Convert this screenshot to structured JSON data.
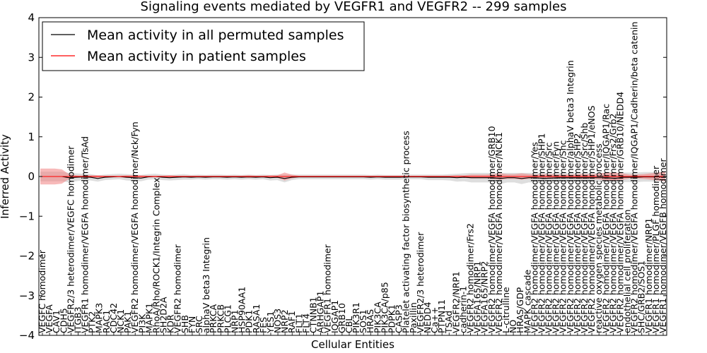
{
  "chart_data": {
    "type": "line",
    "title": "Signaling events mediated by VEGFR1 and VEGFR2 -- 299 samples",
    "xlabel": "Cellular Entities",
    "ylabel": "Inferred Activity",
    "ylim": [
      -4,
      4
    ],
    "yticks": [
      -4,
      -3,
      -2,
      -1,
      0,
      1,
      2,
      3,
      4
    ],
    "ytick_labels": [
      "−4",
      "−3",
      "−2",
      "−1",
      "0",
      "1",
      "2",
      "3",
      "4"
    ],
    "grid": false,
    "legend_position": "top-left",
    "colors": {
      "permuted": "#000000",
      "patient": "#ff0000",
      "patient_band": "#f08080",
      "permuted_band": "#c8c8c8"
    },
    "series": [
      {
        "name": "Mean activity in all permuted samples",
        "color": "#000000",
        "values": [
          0,
          0,
          0,
          0,
          -0.03,
          -0.02,
          -0.01,
          -0.02,
          -0.05,
          -0.02,
          -0.01,
          0,
          -0.02,
          -0.03,
          -0.04,
          -0.01,
          0,
          -0.02,
          -0.03,
          -0.02,
          -0.01,
          -0.02,
          -0.01,
          -0.02,
          -0.01,
          -0.01,
          -0.02,
          -0.01,
          -0.02,
          -0.01,
          -0.02,
          -0.01,
          -0.03,
          -0.02,
          -0.05,
          -0.02,
          -0.01,
          -0.01,
          -0.01,
          -0.01,
          -0.01,
          -0.01,
          -0.01,
          -0.01,
          -0.01,
          -0.01,
          -0.02,
          -0.01,
          -0.02,
          -0.02,
          -0.02,
          -0.01,
          -0.01,
          -0.01,
          -0.02,
          -0.02,
          -0.02,
          -0.02,
          -0.03,
          -0.02,
          -0.03,
          -0.03,
          -0.03,
          -0.03,
          -0.05,
          -0.03,
          -0.03,
          -0.05,
          -0.03,
          -0.03,
          -0.05,
          -0.04,
          -0.03,
          -0.03,
          -0.03,
          -0.03,
          -0.03,
          -0.03,
          -0.03,
          -0.03,
          -0.05,
          -0.02,
          -0.02,
          -0.02,
          -0.01,
          -0.01,
          -0.01,
          0
        ]
      },
      {
        "name": "Mean activity in patient samples",
        "color": "#ff0000",
        "values": [
          0,
          0,
          0,
          0,
          0,
          0,
          0,
          0,
          0,
          0,
          0,
          0,
          0,
          0,
          0,
          0,
          0,
          0,
          0,
          0,
          0,
          0,
          0,
          0,
          0,
          0,
          0,
          0,
          0,
          0,
          0,
          0,
          0,
          0,
          0,
          0,
          0,
          0,
          0,
          0,
          0,
          0,
          0,
          0,
          0,
          0,
          0,
          0,
          0,
          0,
          0,
          0,
          0,
          0,
          0,
          0,
          0,
          0,
          0,
          0,
          0,
          0,
          0,
          0,
          0,
          0,
          0,
          0,
          0,
          0,
          0,
          0,
          0,
          0,
          0,
          0,
          0,
          0,
          0,
          0,
          0,
          0,
          0,
          0,
          0,
          0,
          0,
          0
        ]
      }
    ],
    "band_patient_half": [
      0.2,
      0.2,
      0.2,
      0.18,
      0.06,
      0.03,
      0.02,
      0.03,
      0.03,
      0.02,
      0.02,
      0.02,
      0.03,
      0.03,
      0.03,
      0.02,
      0.02,
      0.02,
      0.03,
      0.02,
      0.02,
      0.02,
      0.02,
      0.02,
      0.02,
      0.02,
      0.02,
      0.02,
      0.02,
      0.03,
      0.02,
      0.02,
      0.03,
      0.03,
      0.1,
      0.05,
      0.02,
      0.02,
      0.02,
      0.02,
      0.02,
      0.02,
      0.02,
      0.02,
      0.02,
      0.02,
      0.02,
      0.02,
      0.02,
      0.02,
      0.02,
      0.02,
      0.02,
      0.02,
      0.02,
      0.02,
      0.02,
      0.02,
      0.03,
      0.03,
      0.05,
      0.05,
      0.05,
      0.06,
      0.08,
      0.06,
      0.06,
      0.08,
      0.06,
      0.05,
      0.06,
      0.06,
      0.05,
      0.05,
      0.05,
      0.06,
      0.06,
      0.06,
      0.08,
      0.1,
      0.1,
      0.08,
      0.05,
      0.05,
      0.06,
      0.08,
      0.1,
      0.12
    ],
    "band_permuted_half": [
      0.12,
      0.12,
      0.12,
      0.12,
      0.12,
      0.1,
      0.08,
      0.08,
      0.08,
      0.07,
      0.07,
      0.07,
      0.08,
      0.08,
      0.08,
      0.07,
      0.07,
      0.07,
      0.07,
      0.07,
      0.07,
      0.06,
      0.06,
      0.06,
      0.06,
      0.06,
      0.06,
      0.06,
      0.06,
      0.06,
      0.06,
      0.06,
      0.07,
      0.07,
      0.1,
      0.07,
      0.06,
      0.06,
      0.06,
      0.06,
      0.06,
      0.06,
      0.06,
      0.06,
      0.06,
      0.06,
      0.06,
      0.06,
      0.06,
      0.06,
      0.06,
      0.06,
      0.06,
      0.06,
      0.07,
      0.07,
      0.07,
      0.08,
      0.1,
      0.1,
      0.12,
      0.12,
      0.12,
      0.12,
      0.14,
      0.12,
      0.12,
      0.14,
      0.12,
      0.12,
      0.14,
      0.12,
      0.12,
      0.12,
      0.12,
      0.12,
      0.12,
      0.12,
      0.12,
      0.12,
      0.14,
      0.12,
      0.12,
      0.12,
      0.12,
      0.12,
      0.12,
      0.12
    ],
    "categories": [
      "VEGFC homodimer",
      "VEGFA",
      "CAV1",
      "CDH5",
      "VEGFR2/3 heterodimer/VEGFC homodimer",
      "ITGB3",
      "VEGFR1 homodimer/VEGFA homodimer/TsAd",
      "PTK2",
      "MAPK3",
      "RAC1",
      "CDC42",
      "NCK1",
      "PAK1",
      "VEGFR2 homodimer/VEGFA homodimer/Nck/Fyn",
      "PI3K",
      "MAPK1",
      "RhoA/Rho/ROCK1/Integrin Complex",
      "SH2D2A",
      "KDR",
      "VEGFR2 homodimer",
      "SHB",
      "FYN",
      "SRC",
      "alphaV beta3 Integrin",
      "PRKCA",
      "PRKCB",
      "PLCG1",
      "NRP1",
      "HSP90AA1",
      "PDK1",
      "RASA1",
      "FES",
      "YES1",
      "NOS3",
      "NRP2",
      "RAF1",
      "FLT1",
      "FLT4",
      "CTNNB1",
      "ARHGAP1",
      "VEGFR1 homodimer",
      "IQGAP1",
      "GRB10",
      "CBL",
      "PIK3R1",
      "SOS1",
      "HRAS",
      "PIK3CA",
      "PIK3CA/p85",
      "PDPK1",
      "CASP3",
      "Platelet activating factor biosynthetic process",
      "Paxillin",
      "VEGFR2/3 heterodimer",
      "NEDD4",
      "Ca++",
      "PTPN11",
      "TSAd",
      "VEGFR2/NRP1",
      "cadherin-1",
      "VEGFR2 homodimer/Frs2",
      "VEGFA165/NRP1",
      "VEGFA165/NRP2",
      "VEGFR2 homodimer/VEGFA homodimer/GRB10",
      "VEGFR2 homodimer/VEGFA homodimer/NCK1",
      "L-citrulline",
      "NO",
      "HRAS/GDP",
      "MAPK cascade",
      "VEGFR2 homodimer/VEGFA homodimer/Yes",
      "VEGFR2 homodimer/VEGFA homodimer/SHP1",
      "VEGFR2 homodimer/VEGFA homodimer/Src",
      "VEGFR2 homodimer/VEGFA homodimer/Fyn",
      "VEGFR2 homodimer/VEGFA homodimer/Shc",
      "VEGFR2 homodimer/VEGFA homodimer/alphaV beta3 Integrin",
      "VEGFR2 homodimer/VEGFA homodimer/SHP2",
      "VEGFR2 homodimer/VEGFA homodimer/Src/Shb",
      "VEGFR2 homodimer/VEGFA homodimer/SHP1/eNOS",
      "reactive oxygen species metabolic process",
      "VEGFR2 homodimer/VEGFA homodimer/IQGAP1/Rac",
      "VEGFR2 homodimer/VEGFA homodimer/Frs2/Grb2",
      "VEGFR2 homodimer/VEGFA homodimer/GRB10/NEDD4",
      "endothelial cell proliferation",
      "VEGFR2 homodimer/VEGFA homodimer/IQGAP1/Cadherin/beta catenin",
      "SHC/GRB2/SOS1",
      "VEGFR1 homodimer/NRP1",
      "VEGFR1 homodimer/PLGF homodimer",
      "VEGFR1 homodimer/VEGFB homodimer"
    ],
    "legend": [
      {
        "label": "Mean activity in all permuted samples",
        "color": "#000000"
      },
      {
        "label": "Mean activity in patient samples",
        "color": "#ff0000"
      }
    ]
  }
}
